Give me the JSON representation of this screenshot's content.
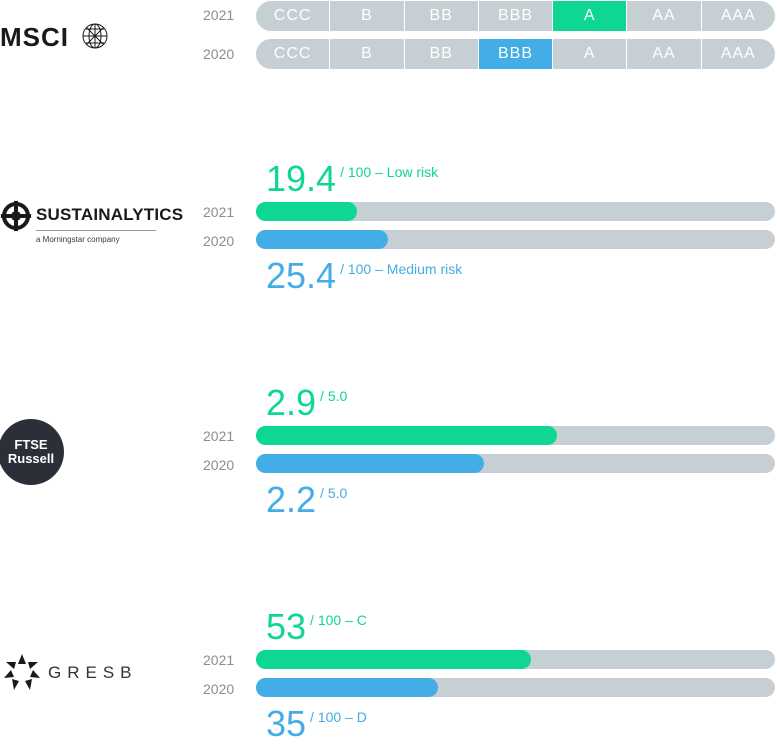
{
  "colors": {
    "current": "#0ed693",
    "previous": "#43ade5",
    "track": "#c6d0d4"
  },
  "msci": {
    "logo_text": "MSCI",
    "icon": "globe-icon",
    "rows": [
      {
        "year": "2021",
        "selected_index": 4
      },
      {
        "year": "2020",
        "selected_index": 3
      }
    ],
    "scale": [
      "CCC",
      "B",
      "BB",
      "BBB",
      "A",
      "AA",
      "AAA"
    ]
  },
  "sustainalytics": {
    "logo_text": "SUSTAINALYTICS",
    "logo_sub": "a Morningstar company",
    "icon": "crosshair-globe-icon",
    "score_2021": {
      "value": "19.4",
      "suffix": "/ 100 – Low risk"
    },
    "score_2020": {
      "value": "25.4",
      "suffix": "/ 100 – Medium risk"
    }
  },
  "ftse": {
    "logo_line1": "FTSE",
    "logo_line2": "Russell",
    "score_2021": {
      "value": "2.9",
      "suffix": "/ 5.0"
    },
    "score_2020": {
      "value": "2.2",
      "suffix": "/ 5.0"
    }
  },
  "gresb": {
    "logo_text": "GRESB",
    "icon": "gresb-sun-icon",
    "score_2021": {
      "value": "53",
      "suffix": "/ 100 – C"
    },
    "score_2020": {
      "value": "35",
      "suffix": "/ 100 – D"
    }
  },
  "chart_data": [
    {
      "type": "table",
      "provider": "MSCI",
      "categories": [
        "CCC",
        "B",
        "BB",
        "BBB",
        "A",
        "AA",
        "AAA"
      ],
      "series": [
        {
          "name": "2021",
          "value": "A"
        },
        {
          "name": "2020",
          "value": "BBB"
        }
      ]
    },
    {
      "type": "bar",
      "provider": "SUSTAINALYTICS",
      "categories": [
        "2021",
        "2020"
      ],
      "values": [
        19.4,
        25.4
      ],
      "xlim": [
        0,
        100
      ]
    },
    {
      "type": "bar",
      "provider": "FTSE Russell",
      "categories": [
        "2021",
        "2020"
      ],
      "values": [
        2.9,
        2.2
      ],
      "xlim": [
        0,
        5.0
      ]
    },
    {
      "type": "bar",
      "provider": "GRESB",
      "categories": [
        "2021",
        "2020"
      ],
      "values": [
        53,
        35
      ],
      "xlim": [
        0,
        100
      ]
    }
  ]
}
